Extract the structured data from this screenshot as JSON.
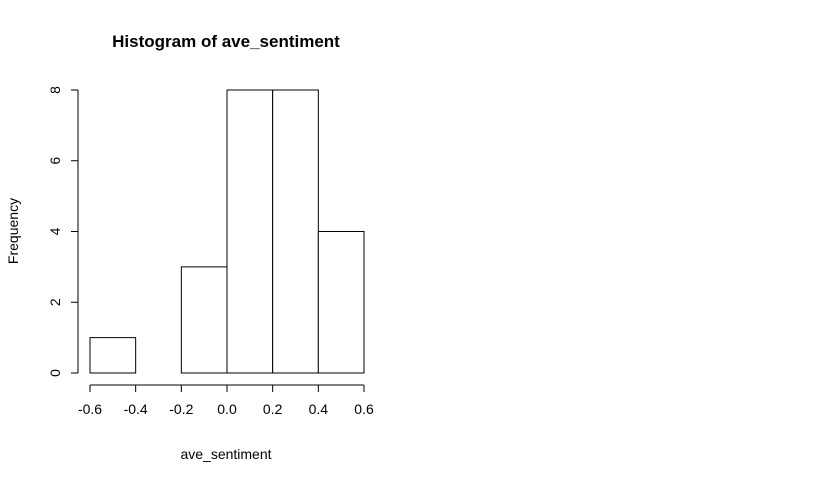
{
  "chart_data": {
    "type": "bar",
    "title": "Histogram of ave_sentiment",
    "xlabel": "ave_sentiment",
    "ylabel": "Frequency",
    "bins": [
      {
        "from": -0.6,
        "to": -0.4,
        "value": 1
      },
      {
        "from": -0.4,
        "to": -0.2,
        "value": 0
      },
      {
        "from": -0.2,
        "to": 0.0,
        "value": 3
      },
      {
        "from": 0.0,
        "to": 0.2,
        "value": 8
      },
      {
        "from": 0.2,
        "to": 0.4,
        "value": 8
      },
      {
        "from": 0.4,
        "to": 0.6,
        "value": 4
      }
    ],
    "x_ticks": [
      "-0.6",
      "-0.4",
      "-0.2",
      "0.0",
      "0.2",
      "0.4",
      "0.6"
    ],
    "x_tick_values": [
      -0.6,
      -0.4,
      -0.2,
      0.0,
      0.2,
      0.4,
      0.6
    ],
    "y_ticks": [
      "0",
      "2",
      "4",
      "6",
      "8"
    ],
    "y_tick_values": [
      0,
      2,
      4,
      6,
      8
    ],
    "xlim": [
      -0.6,
      0.6
    ],
    "ylim": [
      0,
      8
    ],
    "grid": false,
    "bar_fill": "#ffffff",
    "bar_stroke": "#000000"
  }
}
